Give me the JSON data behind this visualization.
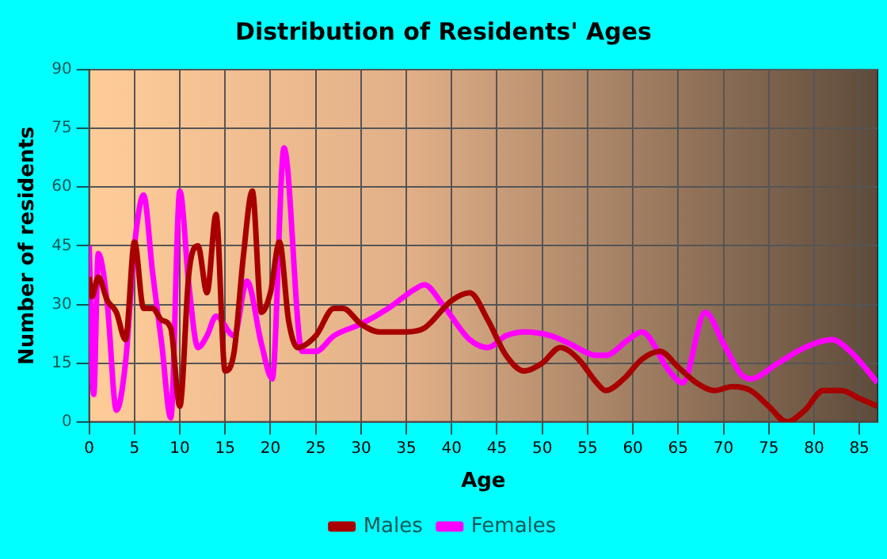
{
  "chart_data": {
    "type": "line",
    "title": "Distribution of Residents' Ages",
    "xlabel": "Age",
    "ylabel": "Number of residents",
    "xlim": [
      0,
      87
    ],
    "xticks": [
      0,
      5,
      10,
      15,
      20,
      25,
      30,
      35,
      40,
      45,
      50,
      55,
      60,
      65,
      70,
      75,
      80,
      85
    ],
    "ylim": [
      0,
      90
    ],
    "yticks": [
      0,
      15,
      30,
      45,
      60,
      75,
      90
    ],
    "grid": true,
    "legend": "bottom",
    "marker": "none",
    "line_style": "solid",
    "series": [
      {
        "name": "Males",
        "color": "#a80000",
        "x": [
          0,
          0.3,
          1,
          2,
          3,
          4,
          5,
          6,
          7,
          8,
          9,
          10,
          11,
          12,
          13,
          14,
          15,
          16,
          17,
          18,
          19,
          20,
          21,
          22,
          23,
          25,
          27,
          28,
          30,
          32,
          35,
          37,
          40,
          42,
          44,
          46,
          48,
          50,
          52,
          54,
          56,
          57,
          59,
          61,
          63,
          65,
          67,
          69,
          71,
          73,
          75,
          77,
          79,
          81,
          83,
          85,
          87
        ],
        "values": [
          37,
          32,
          37,
          31,
          28,
          21,
          46,
          29,
          29,
          26,
          24,
          4,
          38,
          45,
          33,
          53,
          13,
          18,
          42,
          59,
          28,
          33,
          46,
          26,
          19,
          22,
          29,
          29,
          25,
          23,
          23,
          24,
          31,
          33,
          26,
          17,
          13,
          15,
          19,
          16,
          10,
          8,
          11,
          16,
          18,
          14,
          10,
          8,
          9,
          8,
          4,
          0,
          3,
          8,
          8,
          6,
          4
        ]
      },
      {
        "name": "Females",
        "color": "#ff00ff",
        "x": [
          0,
          0.5,
          1,
          2,
          3,
          4,
          5,
          6,
          7,
          8,
          9,
          10,
          11,
          12,
          13,
          14,
          16,
          17.4,
          19,
          20.2,
          21.5,
          23.5,
          25,
          27,
          30,
          33,
          36,
          37,
          39,
          42,
          44,
          46,
          48,
          51,
          53,
          56,
          57,
          59.5,
          61,
          64,
          65.5,
          68,
          70,
          72,
          73,
          76,
          79,
          82,
          84,
          87
        ],
        "values": [
          45,
          7,
          43,
          30,
          3,
          15,
          45,
          58,
          38,
          20,
          1,
          59,
          35,
          19,
          22,
          27,
          22,
          36,
          20,
          11,
          70,
          18,
          18,
          22,
          25,
          29,
          34,
          35,
          30,
          21,
          19,
          22,
          23,
          22,
          20,
          17,
          17,
          21,
          23,
          13,
          10,
          28,
          20,
          12,
          11,
          15,
          19,
          21,
          18,
          10
        ]
      }
    ]
  }
}
